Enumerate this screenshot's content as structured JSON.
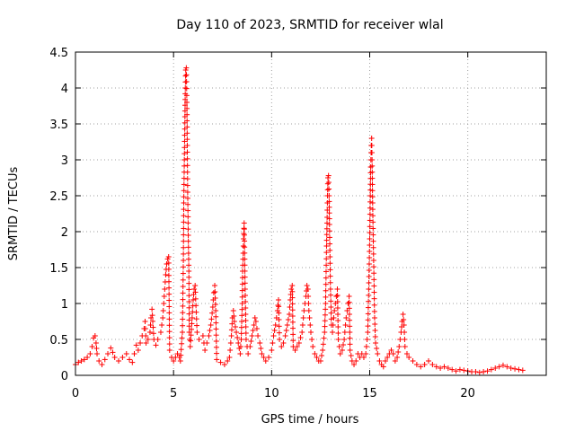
{
  "chart_data": {
    "type": "scatter",
    "title": "Day 110 of 2023, SRMTID for receiver wlal",
    "xlabel": "GPS time / hours",
    "ylabel": "SRMTID / TECUs",
    "xlim": [
      0,
      24
    ],
    "ylim": [
      0,
      4.5
    ],
    "xticks": [
      0,
      5,
      10,
      15,
      20
    ],
    "xtick_labels": [
      "0",
      "5",
      "10",
      "15",
      "20"
    ],
    "yticks": [
      0,
      0.5,
      1,
      1.5,
      2,
      2.5,
      3,
      3.5,
      4,
      4.5
    ],
    "ytick_labels": [
      "0",
      "0.5",
      "1",
      "1.5",
      "2",
      "2.5",
      "3",
      "3.5",
      "4",
      "4.5"
    ],
    "grid": true,
    "marker": "plus",
    "color": "#ff0000",
    "series": [
      {
        "name": "SRMTID",
        "points": [
          [
            0.0,
            0.15
          ],
          [
            0.15,
            0.18
          ],
          [
            0.3,
            0.2
          ],
          [
            0.45,
            0.22
          ],
          [
            0.6,
            0.25
          ],
          [
            0.75,
            0.3
          ],
          [
            0.85,
            0.4
          ],
          [
            0.92,
            0.52
          ],
          [
            1.0,
            0.55
          ],
          [
            1.05,
            0.45
          ],
          [
            1.1,
            0.3
          ],
          [
            1.2,
            0.2
          ],
          [
            1.35,
            0.15
          ],
          [
            1.5,
            0.22
          ],
          [
            1.65,
            0.3
          ],
          [
            1.8,
            0.38
          ],
          [
            1.9,
            0.32
          ],
          [
            2.0,
            0.25
          ],
          [
            2.2,
            0.2
          ],
          [
            2.4,
            0.25
          ],
          [
            2.6,
            0.3
          ],
          [
            2.75,
            0.22
          ],
          [
            2.9,
            0.18
          ],
          [
            3.0,
            0.3
          ],
          [
            3.1,
            0.42
          ],
          [
            3.2,
            0.35
          ],
          [
            3.3,
            0.45
          ],
          [
            3.4,
            0.55
          ],
          [
            3.5,
            0.65
          ],
          [
            3.55,
            0.75
          ],
          [
            3.6,
            0.45
          ],
          [
            3.7,
            0.5
          ],
          [
            3.8,
            0.6
          ],
          [
            3.85,
            0.8
          ],
          [
            3.9,
            0.92
          ],
          [
            4.0,
            0.5
          ],
          [
            4.1,
            0.42
          ],
          [
            4.2,
            0.5
          ],
          [
            4.35,
            0.6
          ],
          [
            4.45,
            0.8
          ],
          [
            4.5,
            1.0
          ],
          [
            4.55,
            1.2
          ],
          [
            4.6,
            1.4
          ],
          [
            4.65,
            1.55
          ],
          [
            4.7,
            1.62
          ],
          [
            4.75,
            1.65
          ],
          [
            4.8,
            0.35
          ],
          [
            4.9,
            0.25
          ],
          [
            5.0,
            0.2
          ],
          [
            5.1,
            0.25
          ],
          [
            5.2,
            0.3
          ],
          [
            5.3,
            0.25
          ],
          [
            5.35,
            0.2
          ],
          [
            5.45,
            0.6
          ],
          [
            5.5,
            1.6
          ],
          [
            5.52,
            2.4
          ],
          [
            5.55,
            3.0
          ],
          [
            5.58,
            3.6
          ],
          [
            5.6,
            4.0
          ],
          [
            5.62,
            4.25
          ],
          [
            5.65,
            4.28
          ],
          [
            5.68,
            3.8
          ],
          [
            5.7,
            3.2
          ],
          [
            5.72,
            2.55
          ],
          [
            5.75,
            1.95
          ],
          [
            5.78,
            1.45
          ],
          [
            5.8,
            0.6
          ],
          [
            5.85,
            0.4
          ],
          [
            5.95,
            0.8
          ],
          [
            6.0,
            1.05
          ],
          [
            6.05,
            1.2
          ],
          [
            6.1,
            1.25
          ],
          [
            6.2,
            0.6
          ],
          [
            6.3,
            0.5
          ],
          [
            6.5,
            0.55
          ],
          [
            6.6,
            0.35
          ],
          [
            6.7,
            0.45
          ],
          [
            6.8,
            0.55
          ],
          [
            6.9,
            0.7
          ],
          [
            7.0,
            0.95
          ],
          [
            7.05,
            1.15
          ],
          [
            7.1,
            1.25
          ],
          [
            7.15,
            0.9
          ],
          [
            7.2,
            0.22
          ],
          [
            7.4,
            0.18
          ],
          [
            7.6,
            0.15
          ],
          [
            7.75,
            0.2
          ],
          [
            7.85,
            0.25
          ],
          [
            7.95,
            0.55
          ],
          [
            8.0,
            0.8
          ],
          [
            8.05,
            0.9
          ],
          [
            8.1,
            0.75
          ],
          [
            8.2,
            0.6
          ],
          [
            8.3,
            0.45
          ],
          [
            8.4,
            0.3
          ],
          [
            8.45,
            0.5
          ],
          [
            8.5,
            1.0
          ],
          [
            8.52,
            1.45
          ],
          [
            8.55,
            1.7
          ],
          [
            8.57,
            1.9
          ],
          [
            8.6,
            2.12
          ],
          [
            8.65,
            1.2
          ],
          [
            8.7,
            0.5
          ],
          [
            8.8,
            0.3
          ],
          [
            8.9,
            0.4
          ],
          [
            9.0,
            0.55
          ],
          [
            9.1,
            0.7
          ],
          [
            9.15,
            0.8
          ],
          [
            9.2,
            0.75
          ],
          [
            9.3,
            0.55
          ],
          [
            9.4,
            0.45
          ],
          [
            9.5,
            0.3
          ],
          [
            9.6,
            0.25
          ],
          [
            9.7,
            0.2
          ],
          [
            9.85,
            0.25
          ],
          [
            10.0,
            0.35
          ],
          [
            10.1,
            0.55
          ],
          [
            10.2,
            0.7
          ],
          [
            10.3,
            0.9
          ],
          [
            10.35,
            1.05
          ],
          [
            10.4,
            0.5
          ],
          [
            10.5,
            0.4
          ],
          [
            10.6,
            0.45
          ],
          [
            10.7,
            0.55
          ],
          [
            10.8,
            0.7
          ],
          [
            10.9,
            0.85
          ],
          [
            10.95,
            1.05
          ],
          [
            11.0,
            1.2
          ],
          [
            11.05,
            1.25
          ],
          [
            11.1,
            0.4
          ],
          [
            11.2,
            0.35
          ],
          [
            11.3,
            0.4
          ],
          [
            11.4,
            0.45
          ],
          [
            11.55,
            0.6
          ],
          [
            11.65,
            0.9
          ],
          [
            11.75,
            1.1
          ],
          [
            11.8,
            1.25
          ],
          [
            11.85,
            1.2
          ],
          [
            11.9,
            0.9
          ],
          [
            12.0,
            0.6
          ],
          [
            12.1,
            0.4
          ],
          [
            12.2,
            0.3
          ],
          [
            12.3,
            0.25
          ],
          [
            12.4,
            0.2
          ],
          [
            12.5,
            0.2
          ],
          [
            12.6,
            0.35
          ],
          [
            12.7,
            0.6
          ],
          [
            12.75,
            1.0
          ],
          [
            12.8,
            1.8
          ],
          [
            12.83,
            2.2
          ],
          [
            12.85,
            2.5
          ],
          [
            12.87,
            2.75
          ],
          [
            12.9,
            2.78
          ],
          [
            12.93,
            2.5
          ],
          [
            12.95,
            2.1
          ],
          [
            13.0,
            1.2
          ],
          [
            13.05,
            0.7
          ],
          [
            13.1,
            0.6
          ],
          [
            13.2,
            0.9
          ],
          [
            13.3,
            1.1
          ],
          [
            13.35,
            1.2
          ],
          [
            13.4,
            0.5
          ],
          [
            13.5,
            0.3
          ],
          [
            13.6,
            0.35
          ],
          [
            13.7,
            0.5
          ],
          [
            13.8,
            0.8
          ],
          [
            13.9,
            1.0
          ],
          [
            13.95,
            1.1
          ],
          [
            14.0,
            0.35
          ],
          [
            14.1,
            0.2
          ],
          [
            14.2,
            0.15
          ],
          [
            14.3,
            0.2
          ],
          [
            14.4,
            0.3
          ],
          [
            14.5,
            0.25
          ],
          [
            14.6,
            0.3
          ],
          [
            14.7,
            0.25
          ],
          [
            14.8,
            0.3
          ],
          [
            14.9,
            0.6
          ],
          [
            14.95,
            1.2
          ],
          [
            15.0,
            1.9
          ],
          [
            15.03,
            2.5
          ],
          [
            15.05,
            2.9
          ],
          [
            15.08,
            3.2
          ],
          [
            15.1,
            3.3
          ],
          [
            15.12,
            3.0
          ],
          [
            15.15,
            2.4
          ],
          [
            15.2,
            1.6
          ],
          [
            15.25,
            0.8
          ],
          [
            15.3,
            0.45
          ],
          [
            15.4,
            0.3
          ],
          [
            15.5,
            0.2
          ],
          [
            15.6,
            0.15
          ],
          [
            15.7,
            0.12
          ],
          [
            15.8,
            0.2
          ],
          [
            15.9,
            0.25
          ],
          [
            16.0,
            0.3
          ],
          [
            16.1,
            0.35
          ],
          [
            16.2,
            0.3
          ],
          [
            16.3,
            0.2
          ],
          [
            16.4,
            0.25
          ],
          [
            16.5,
            0.4
          ],
          [
            16.6,
            0.6
          ],
          [
            16.65,
            0.75
          ],
          [
            16.7,
            0.85
          ],
          [
            16.75,
            0.7
          ],
          [
            16.8,
            0.4
          ],
          [
            16.9,
            0.3
          ],
          [
            17.0,
            0.25
          ],
          [
            17.2,
            0.2
          ],
          [
            17.4,
            0.15
          ],
          [
            17.6,
            0.12
          ],
          [
            17.8,
            0.15
          ],
          [
            18.0,
            0.2
          ],
          [
            18.2,
            0.15
          ],
          [
            18.4,
            0.12
          ],
          [
            18.6,
            0.1
          ],
          [
            18.8,
            0.12
          ],
          [
            19.0,
            0.1
          ],
          [
            19.2,
            0.08
          ],
          [
            19.4,
            0.06
          ],
          [
            19.6,
            0.08
          ],
          [
            19.8,
            0.07
          ],
          [
            20.0,
            0.06
          ],
          [
            20.2,
            0.05
          ],
          [
            20.4,
            0.05
          ],
          [
            20.6,
            0.04
          ],
          [
            20.8,
            0.05
          ],
          [
            21.0,
            0.06
          ],
          [
            21.2,
            0.08
          ],
          [
            21.4,
            0.1
          ],
          [
            21.6,
            0.12
          ],
          [
            21.8,
            0.14
          ],
          [
            22.0,
            0.12
          ],
          [
            22.2,
            0.1
          ],
          [
            22.4,
            0.09
          ],
          [
            22.6,
            0.08
          ],
          [
            22.8,
            0.07
          ]
        ]
      }
    ]
  }
}
